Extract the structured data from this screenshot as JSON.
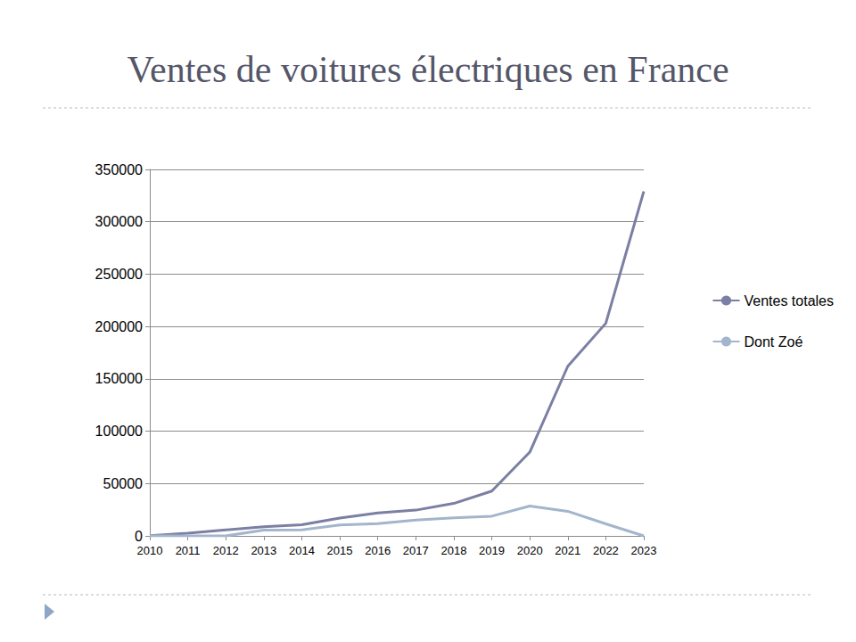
{
  "chart_data": {
    "type": "line",
    "title": "Ventes de voitures électriques en France",
    "categories": [
      "2010",
      "2011",
      "2012",
      "2013",
      "2014",
      "2015",
      "2016",
      "2017",
      "2018",
      "2019",
      "2020",
      "2021",
      "2022",
      "2023"
    ],
    "series": [
      {
        "name": "Ventes totales",
        "color": "#7b7fa3",
        "values": [
          200,
          2600,
          5700,
          8800,
          10600,
          17000,
          22000,
          24600,
          31000,
          42800,
          80000,
          162000,
          203000,
          329000
        ]
      },
      {
        "name": "Dont Zoé",
        "color": "#a3b5cc",
        "values": [
          0,
          0,
          0,
          5500,
          5800,
          10400,
          11800,
          15200,
          17200,
          18800,
          28500,
          23500,
          11500,
          0
        ]
      }
    ],
    "ylim": [
      0,
      350000
    ],
    "yticks": [
      0,
      50000,
      100000,
      150000,
      200000,
      250000,
      300000,
      350000
    ],
    "grid": true,
    "legend": "right"
  }
}
